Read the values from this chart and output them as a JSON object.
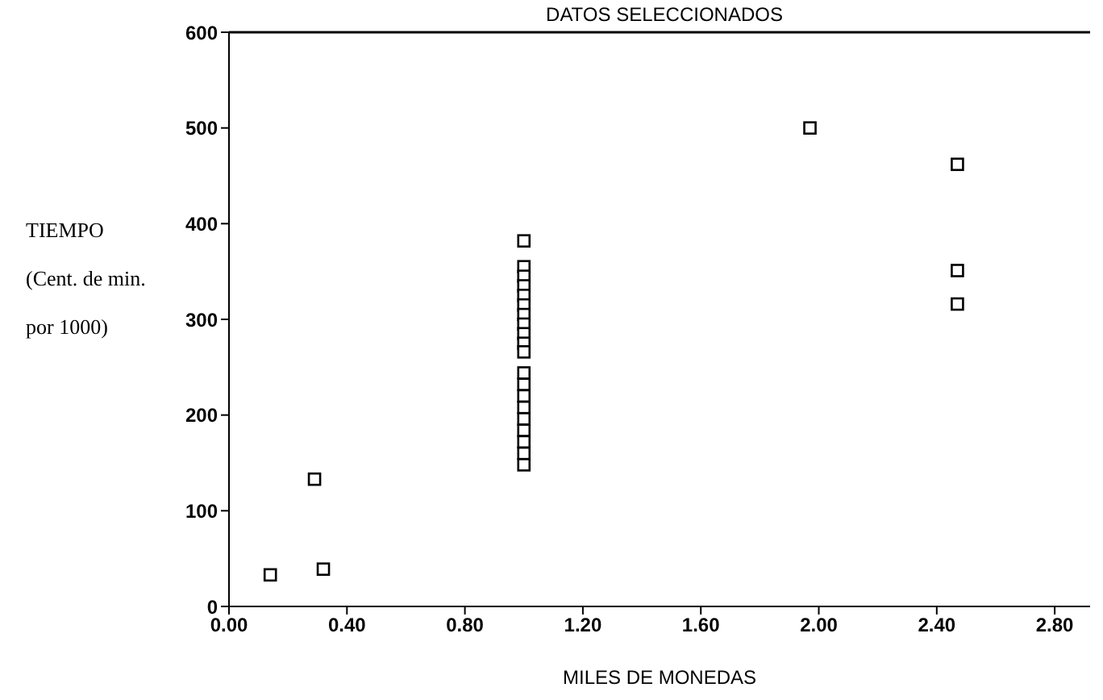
{
  "chart_data": {
    "type": "scatter",
    "title": "DATOS SELECCIONADOS",
    "xlabel": "MILES DE MONEDAS",
    "ylabel": "TIEMPO\n(Cent. de min.\npor 1000)",
    "x": [
      0.14,
      0.29,
      0.32,
      1,
      1,
      1,
      1,
      1,
      1,
      1,
      1,
      1,
      1,
      1,
      1,
      1,
      1,
      1,
      1,
      1,
      1,
      1,
      1,
      1.97,
      2.47,
      2.47,
      2.47
    ],
    "series": [
      {
        "color": "#000000",
        "values": [
          33,
          133,
          39,
          382,
          355,
          345,
          335,
          325,
          315,
          305,
          295,
          285,
          275,
          266,
          244,
          232,
          220,
          208,
          196,
          184,
          172,
          160,
          148,
          500,
          462,
          351,
          316
        ]
      }
    ],
    "marker": "square",
    "xlim": [
      0,
      2.92
    ],
    "xticks": [
      {
        "value": 0,
        "label": "0.00"
      },
      {
        "value": 0.4,
        "label": "0.40"
      },
      {
        "value": 0.8,
        "label": "0.80"
      },
      {
        "value": 1.2,
        "label": "1.20"
      },
      {
        "value": 1.6,
        "label": "1.60"
      },
      {
        "value": 2,
        "label": "2.00"
      },
      {
        "value": 2.4,
        "label": "2.40"
      },
      {
        "value": 2.8,
        "label": "2.80"
      }
    ],
    "ylim": [
      0,
      600
    ],
    "yticks": [
      0,
      100,
      200,
      300,
      400,
      500,
      600
    ],
    "grid": false,
    "legend": false
  }
}
